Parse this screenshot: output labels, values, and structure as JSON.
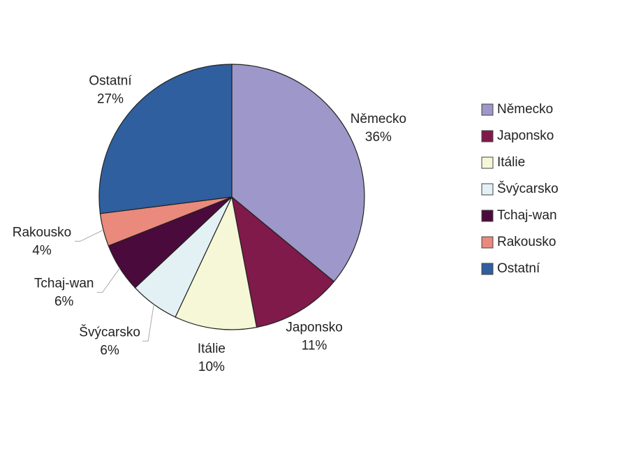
{
  "chart_data": {
    "type": "pie",
    "categories": [
      "Německo",
      "Japonsko",
      "Itálie",
      "Švýcarsko",
      "Tchaj-wan",
      "Rakousko",
      "Ostatní"
    ],
    "values": [
      36,
      11,
      10,
      6,
      6,
      4,
      27
    ],
    "value_labels": [
      "36%",
      "11%",
      "10%",
      "6%",
      "6%",
      "4%",
      "27%"
    ],
    "colors": [
      "#9e97c9",
      "#7f1a4a",
      "#f5f7d6",
      "#e3f1f5",
      "#4b0a3c",
      "#e98a7c",
      "#2f5f9e"
    ],
    "legend": "right"
  }
}
